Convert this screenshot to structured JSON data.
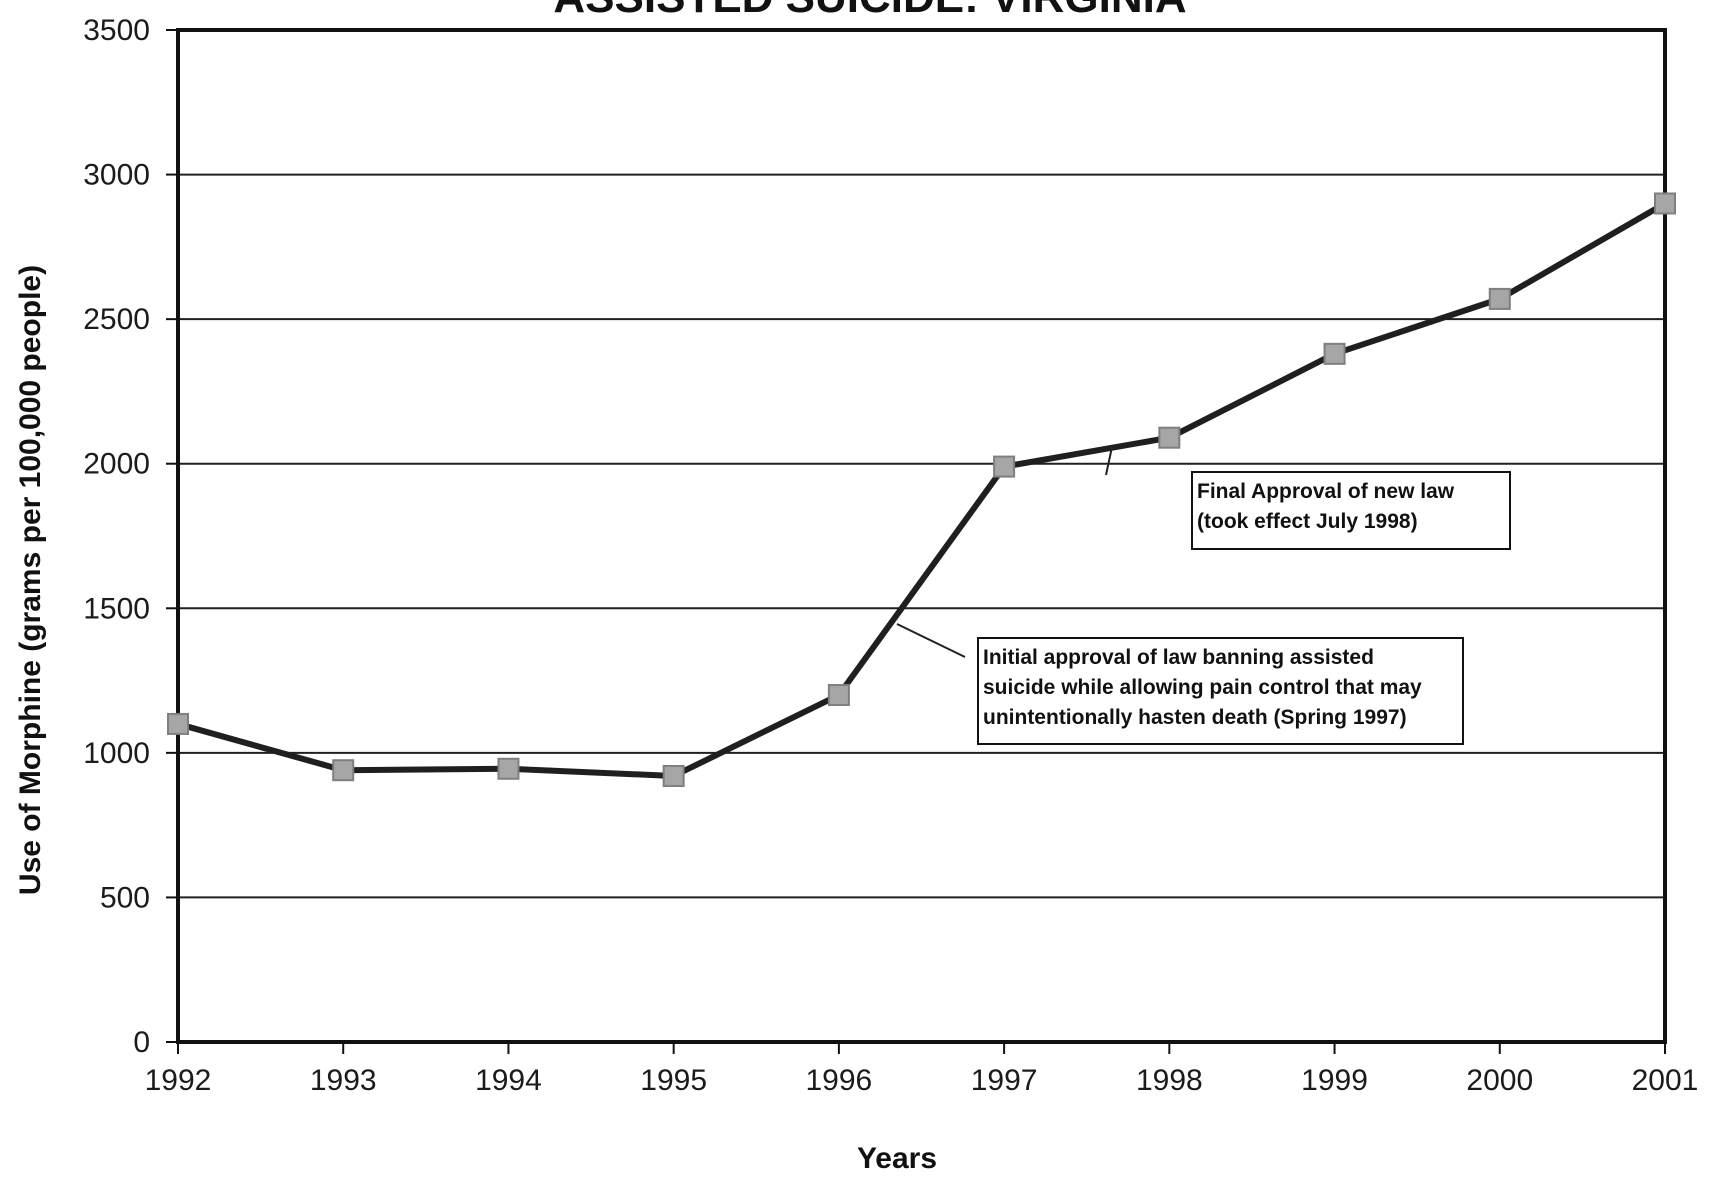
{
  "chart_data": {
    "type": "line",
    "title": "ASSISTED SUICIDE: VIRGINIA",
    "xlabel": "Years",
    "ylabel": "Use of Morphine (grams per 100,000 people)",
    "x": [
      1992,
      1993,
      1994,
      1995,
      1996,
      1997,
      1998,
      1999,
      2000,
      2001
    ],
    "series": [
      {
        "values": [
          1100,
          940,
          945,
          920,
          1200,
          1990,
          2090,
          2380,
          2570,
          2900
        ]
      }
    ],
    "ylim": [
      0,
      3500
    ],
    "yticks": [
      0,
      500,
      1000,
      1500,
      2000,
      2500,
      3000,
      3500
    ],
    "xtick_labels": [
      "1992",
      "1993",
      "1994",
      "1995",
      "1996",
      "1997",
      "1998",
      "1999",
      "2000",
      "2001"
    ],
    "ytick_labels": [
      "0",
      "500",
      "1000",
      "1500",
      "2000",
      "2500",
      "3000",
      "3500"
    ],
    "grid": true,
    "annotations": [
      {
        "lines": [
          "Final Approval of new law",
          "(took effect July 1998)"
        ]
      },
      {
        "lines": [
          "Initial approval of law banning assisted",
          "suicide while allowing pain control that may",
          "unintentionally hasten death (Spring 1997)"
        ]
      }
    ],
    "colors": {
      "line": "#1f1f1f",
      "marker_fill": "#a6a6a6",
      "marker_stroke": "#7f7f7f",
      "grid": "#202020",
      "border": "#111111"
    }
  }
}
